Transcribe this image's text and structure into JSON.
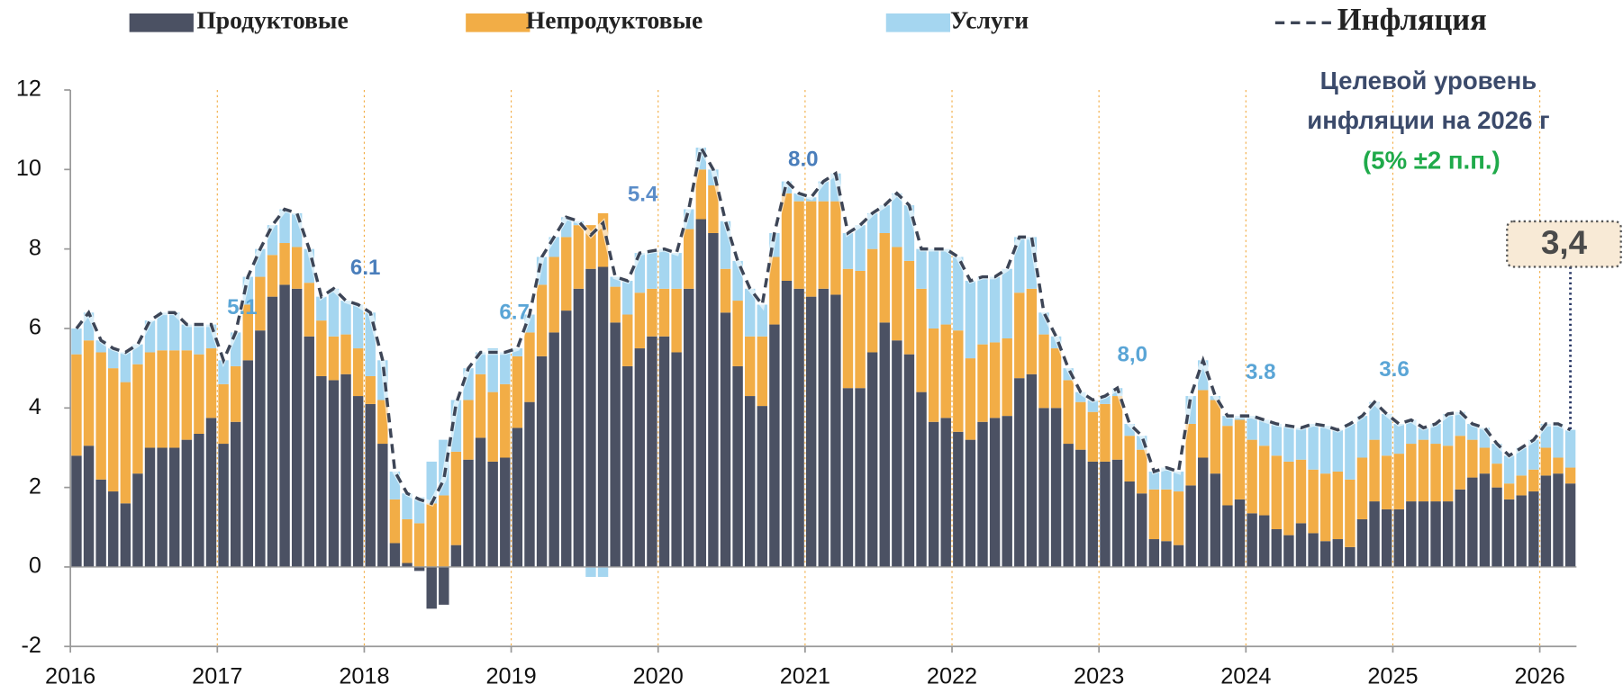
{
  "chart_data": {
    "type": "bar",
    "stacked": true,
    "categories": [
      "2016",
      null,
      null,
      null,
      null,
      null,
      null,
      null,
      null,
      null,
      null,
      null,
      "2017",
      null,
      null,
      null,
      null,
      null,
      null,
      null,
      null,
      null,
      null,
      null,
      "2018",
      null,
      null,
      null,
      null,
      null,
      null,
      null,
      null,
      null,
      null,
      null,
      "2019",
      null,
      null,
      null,
      null,
      null,
      null,
      null,
      null,
      null,
      null,
      null,
      "2020",
      null,
      null,
      null,
      null,
      null,
      null,
      null,
      null,
      null,
      null,
      null,
      "2021",
      null,
      null,
      null,
      null,
      null,
      null,
      null,
      null,
      null,
      null,
      null,
      "2022",
      null,
      null,
      null,
      null,
      null,
      null,
      null,
      null,
      null,
      null,
      null,
      "2023",
      null,
      null,
      null,
      null,
      null,
      null,
      null,
      null,
      null,
      null,
      null,
      "2024",
      null,
      null,
      null,
      null,
      null,
      null,
      null,
      null,
      null,
      null,
      null,
      "2025",
      null,
      null,
      null,
      null,
      null,
      null,
      null,
      null,
      null,
      null,
      null,
      "2026",
      null,
      null
    ],
    "series": [
      {
        "name": "Продуктовые",
        "color": "#4b5163",
        "values": [
          2.8,
          3.05,
          2.2,
          1.9,
          1.6,
          2.35,
          3.0,
          3.0,
          3.0,
          3.2,
          3.35,
          3.75,
          3.1,
          3.65,
          5.2,
          5.95,
          6.8,
          7.1,
          7.0,
          5.8,
          4.8,
          4.7,
          4.85,
          4.3,
          4.1,
          3.1,
          0.6,
          0.1,
          -0.1,
          -1.05,
          -0.95,
          0.55,
          2.7,
          3.25,
          2.65,
          2.75,
          3.5,
          4.15,
          5.3,
          5.9,
          6.45,
          7.0,
          7.5,
          7.55,
          6.15,
          5.05,
          5.5,
          5.8,
          5.8,
          5.4,
          7.0,
          8.75,
          8.4,
          6.4,
          5.05,
          4.3,
          4.05,
          6.1,
          7.2,
          7.0,
          6.8,
          7.0,
          6.85,
          4.5,
          4.5,
          5.4,
          6.15,
          5.7,
          5.35,
          4.4,
          3.65,
          3.75,
          3.4,
          3.2,
          3.65,
          3.75,
          3.8,
          4.75,
          4.85,
          4.0,
          4.0,
          3.1,
          2.95,
          2.65,
          2.65,
          2.7,
          2.15,
          1.85,
          0.7,
          0.65,
          0.55,
          2.05,
          2.75,
          2.35,
          1.55,
          1.7,
          1.35,
          1.3,
          0.95,
          0.8,
          1.1,
          0.85,
          0.65,
          0.7,
          0.5,
          1.2,
          1.65,
          1.45,
          1.45,
          1.65,
          1.65,
          1.65,
          1.65,
          1.95,
          2.25,
          2.35,
          2.0,
          1.7,
          1.8,
          1.9,
          2.3,
          2.35,
          2.1
        ]
      },
      {
        "name": "Непродуктовые",
        "color": "#f2ad46",
        "values": [
          2.55,
          2.65,
          3.2,
          3.1,
          3.05,
          2.75,
          2.4,
          2.45,
          2.45,
          2.25,
          2.0,
          1.75,
          1.5,
          1.4,
          1.4,
          1.35,
          1.05,
          1.05,
          1.05,
          1.35,
          1.4,
          1.1,
          1.0,
          1.2,
          0.7,
          1.1,
          1.1,
          1.1,
          1.1,
          1.6,
          1.8,
          2.35,
          1.5,
          1.6,
          1.75,
          1.85,
          1.8,
          1.75,
          1.8,
          1.9,
          1.85,
          1.6,
          1.1,
          1.35,
          0.9,
          1.3,
          1.4,
          1.2,
          1.2,
          1.6,
          1.5,
          1.25,
          1.2,
          1.1,
          1.65,
          1.5,
          1.75,
          1.7,
          2.2,
          2.2,
          2.4,
          2.2,
          2.35,
          3.0,
          2.95,
          2.6,
          2.25,
          2.35,
          2.35,
          2.6,
          2.35,
          2.35,
          2.55,
          2.05,
          1.95,
          1.9,
          1.95,
          2.15,
          2.15,
          1.85,
          1.5,
          1.6,
          1.2,
          1.25,
          1.45,
          1.6,
          1.15,
          1.1,
          1.25,
          1.3,
          1.35,
          1.55,
          1.7,
          1.85,
          2.0,
          2.0,
          1.85,
          1.75,
          1.85,
          1.85,
          1.6,
          1.6,
          1.7,
          1.7,
          1.7,
          1.55,
          1.55,
          1.35,
          1.4,
          1.45,
          1.55,
          1.45,
          1.4,
          1.35,
          0.95,
          0.65,
          0.6,
          0.4,
          0.5,
          0.55,
          0.7,
          0.4,
          0.4
        ]
      },
      {
        "name": "Услуги",
        "color": "#a5d6f0",
        "values": [
          0.65,
          0.7,
          0.3,
          0.5,
          0.75,
          0.5,
          0.8,
          0.95,
          0.95,
          0.65,
          0.75,
          0.6,
          0.6,
          0.85,
          0.7,
          0.7,
          0.75,
          0.85,
          0.85,
          0.85,
          0.6,
          1.2,
          0.85,
          1.1,
          1.6,
          1.0,
          0.7,
          0.65,
          0.65,
          1.05,
          1.4,
          1.3,
          0.8,
          0.55,
          1.1,
          0.8,
          0.2,
          0.45,
          0.7,
          0.5,
          0.5,
          0.1,
          -0.25,
          -0.25,
          0.25,
          0.85,
          1.0,
          0.95,
          1.0,
          0.9,
          0.5,
          0.55,
          0.4,
          1.2,
          1.0,
          1.2,
          0.8,
          0.6,
          0.3,
          0.2,
          0.1,
          0.5,
          0.7,
          0.9,
          1.15,
          0.9,
          0.7,
          1.35,
          1.4,
          1.0,
          2.0,
          1.9,
          1.85,
          1.95,
          1.7,
          1.65,
          1.75,
          1.4,
          1.3,
          0.55,
          0.3,
          0.3,
          0.25,
          0.3,
          0.2,
          0.2,
          0.3,
          0.35,
          0.45,
          0.55,
          0.5,
          0.7,
          0.75,
          0.1,
          0.25,
          0.1,
          0.6,
          0.65,
          0.8,
          0.9,
          0.8,
          1.15,
          1.2,
          1.05,
          1.4,
          1.05,
          0.95,
          1.05,
          0.75,
          0.6,
          0.3,
          0.5,
          0.8,
          0.6,
          0.4,
          0.5,
          0.5,
          0.7,
          0.7,
          0.75,
          0.6,
          0.85,
          0.95
        ]
      },
      {
        "name": "Инфляция",
        "color": "#3d4556",
        "type": "line",
        "dashed": true,
        "values": [
          6.0,
          6.4,
          5.7,
          5.5,
          5.4,
          5.6,
          6.2,
          6.4,
          6.4,
          6.1,
          6.1,
          6.1,
          5.2,
          5.9,
          7.3,
          8.0,
          8.6,
          9.0,
          8.9,
          8.0,
          6.8,
          7.0,
          6.7,
          6.6,
          6.4,
          5.2,
          2.4,
          1.85,
          1.7,
          1.6,
          2.2,
          4.1,
          5.0,
          5.4,
          5.4,
          5.4,
          5.5,
          6.35,
          7.8,
          8.3,
          8.8,
          8.7,
          8.35,
          8.65,
          7.3,
          7.2,
          7.9,
          7.95,
          8.0,
          7.9,
          9.0,
          10.55,
          10.0,
          8.7,
          7.7,
          7.0,
          6.6,
          8.4,
          9.7,
          9.4,
          9.3,
          9.7,
          9.9,
          8.4,
          8.6,
          8.9,
          9.1,
          9.4,
          9.1,
          8.0,
          8.0,
          8.0,
          7.8,
          7.2,
          7.3,
          7.3,
          7.5,
          8.3,
          8.3,
          6.4,
          5.8,
          5.0,
          4.4,
          4.2,
          4.3,
          4.5,
          3.6,
          3.3,
          2.4,
          2.5,
          2.4,
          4.3,
          5.2,
          4.3,
          3.8,
          3.8,
          3.8,
          3.7,
          3.6,
          3.55,
          3.5,
          3.6,
          3.55,
          3.45,
          3.6,
          3.8,
          4.15,
          3.85,
          3.6,
          3.7,
          3.5,
          3.6,
          3.85,
          3.9,
          3.6,
          3.5,
          3.1,
          2.8,
          3.0,
          3.2,
          3.6,
          3.6,
          3.45
        ]
      }
    ],
    "ylim": [
      -2,
      12
    ],
    "yticks": [
      -2,
      0,
      2,
      4,
      6,
      8,
      10,
      12
    ],
    "legend": "top",
    "annotations": [
      "5.1",
      "6.1",
      "6.7",
      "5.4",
      "8.0",
      "8,0",
      "3.8",
      "3.6"
    ],
    "target_note": [
      "Целевой уровень",
      "инфляции на 2026 г"
    ],
    "target_range": "(5% ±2 п.п.)",
    "callout": "3,4"
  }
}
